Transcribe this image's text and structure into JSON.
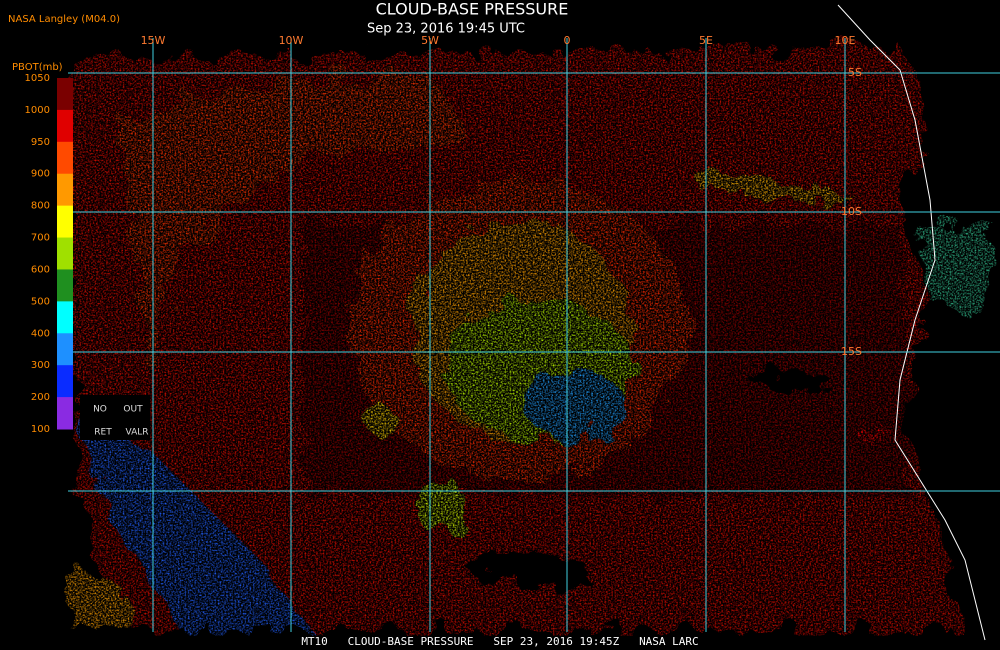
{
  "header": {
    "source": "NASA Langley (M04.0)",
    "title": "CLOUD-BASE PRESSURE",
    "subtitle": "Sep 23, 2016 19:45 UTC"
  },
  "longitude_labels": [
    "15W",
    "10W",
    "5W",
    "0",
    "5E",
    "10E"
  ],
  "latitude_labels": [
    "5S",
    "10S",
    "15S"
  ],
  "legend": {
    "title": "PBOT(mb)",
    "ticks": [
      1050,
      1000,
      950,
      900,
      800,
      700,
      600,
      500,
      400,
      300,
      200,
      100
    ],
    "colors": [
      "#7a0000",
      "#e00000",
      "#ff4a00",
      "#ff9900",
      "#ffff00",
      "#a0e000",
      "#1f8f1f",
      "#00ffff",
      "#1e90ff",
      "#0a2cff",
      "#8a2be2"
    ],
    "notes": [
      "NO",
      "OUT",
      "RET",
      "VALR"
    ]
  },
  "footer": "MT10   CLOUD-BASE PRESSURE   SEP 23, 2016 19:45Z   NASA LARC"
}
